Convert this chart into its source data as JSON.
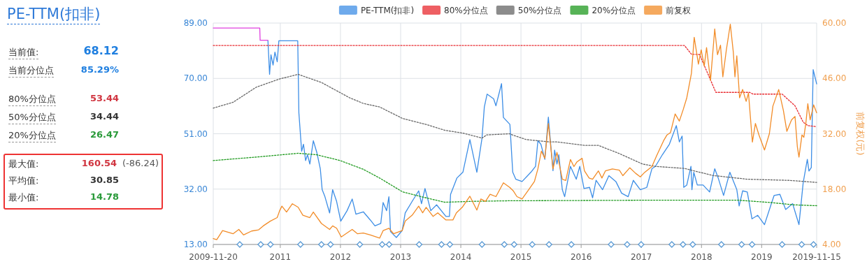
{
  "chart_data": [
    {
      "type": "other",
      "title": "PE-TTM(扣非)",
      "annotations": [
        "当前值:",
        "68.12",
        "当前分位点",
        "85.29%",
        "80%分位点",
        "53.44",
        "50%分位点",
        "34.44",
        "20%分位点",
        "26.47",
        "最大值:",
        "160.54",
        "(-86.24)",
        "平均值:",
        "30.85",
        "最小值:",
        "14.78"
      ]
    },
    {
      "type": "line",
      "y2label": "前复权(元)",
      "legend": "top",
      "grid": true,
      "xlim": [
        2009.886,
        2019.914
      ],
      "xticks": [
        {
          "value": 2009.886,
          "label": "2009-11-20"
        },
        {
          "value": 2011,
          "label": "2011"
        },
        {
          "value": 2012,
          "label": "2012"
        },
        {
          "value": 2013,
          "label": "2013"
        },
        {
          "value": 2014,
          "label": "2014"
        },
        {
          "value": 2015,
          "label": "2015"
        },
        {
          "value": 2016,
          "label": "2016"
        },
        {
          "value": 2017,
          "label": "2017"
        },
        {
          "value": 2018,
          "label": "2018"
        },
        {
          "value": 2019,
          "label": "2019"
        },
        {
          "value": 2019.914,
          "label": "2019-11-15"
        }
      ],
      "ylim": [
        13,
        89
      ],
      "yticks": [
        {
          "value": 13,
          "label": "13.00"
        },
        {
          "value": 32,
          "label": "32.00"
        },
        {
          "value": 51,
          "label": "51.00"
        },
        {
          "value": 70,
          "label": "70.00"
        },
        {
          "value": 89,
          "label": "89.00"
        }
      ],
      "y2lim": [
        4,
        60
      ],
      "y2ticks": [
        {
          "value": 4,
          "label": "4.00"
        },
        {
          "value": 18,
          "label": "18.00"
        },
        {
          "value": 32,
          "label": "32.00"
        },
        {
          "value": 46,
          "label": "46.00"
        },
        {
          "value": 60,
          "label": "60.00"
        }
      ],
      "series": [
        {
          "name": "PE-TTM(扣非)",
          "color": "#3d8ee6",
          "line_style": "solid",
          "x": [
            2010.795,
            2010.822,
            2010.845,
            2010.88,
            2010.911,
            2010.949,
            2010.976,
            2011.29,
            2011.309,
            2011.355,
            2011.386,
            2011.421,
            2011.452,
            2011.491,
            2011.549,
            2011.607,
            2011.665,
            2011.696,
            2011.742,
            2011.82,
            2011.87,
            2011.936,
            2012.005,
            2012.11,
            2012.195,
            2012.257,
            2012.38,
            2012.496,
            2012.573,
            2012.67,
            2012.709,
            2012.767,
            2012.805,
            2012.832,
            2012.929,
            2013.026,
            2013.076,
            2013.192,
            2013.3,
            2013.347,
            2013.405,
            2013.501,
            2013.598,
            2013.753,
            2013.811,
            2013.83,
            2013.935,
            2014.035,
            2014.151,
            2014.267,
            2014.352,
            2014.391,
            2014.437,
            2014.546,
            2014.584,
            2014.677,
            2014.708,
            2014.816,
            2014.863,
            2014.914,
            2015.018,
            2015.165,
            2015.242,
            2015.281,
            2015.331,
            2015.397,
            2015.455,
            2015.532,
            2015.559,
            2015.598,
            2015.629,
            2015.687,
            2015.726,
            2015.822,
            2015.919,
            2015.977,
            2016.047,
            2016.14,
            2016.19,
            2016.248,
            2016.356,
            2016.461,
            2016.577,
            2016.673,
            2016.781,
            2016.867,
            2016.983,
            2017.091,
            2017.176,
            2017.234,
            2017.35,
            2017.466,
            2017.582,
            2017.632,
            2017.678,
            2017.705,
            2017.756,
            2017.825,
            2017.841,
            2017.872,
            2017.93,
            2018.026,
            2018.135,
            2018.22,
            2018.278,
            2018.367,
            2018.471,
            2018.587,
            2018.626,
            2018.684,
            2018.761,
            2018.839,
            2018.935,
            2019.047,
            2019.148,
            2019.206,
            2019.303,
            2019.399,
            2019.515,
            2019.573,
            2019.62,
            2019.69,
            2019.759,
            2019.786,
            2019.825,
            2019.856,
            2019.914
          ],
          "values": [
            82.9,
            71.4,
            78.1,
            74.6,
            79.0,
            75.7,
            82.9,
            82.9,
            58.2,
            45.0,
            47.4,
            41.8,
            43.8,
            40.6,
            48.6,
            44.6,
            39.0,
            31.8,
            29.4,
            23.8,
            31.8,
            27.8,
            21.0,
            24.6,
            28.6,
            23.4,
            24.2,
            21.4,
            19.4,
            20.2,
            27.4,
            24.6,
            29.4,
            17.4,
            15.4,
            17.8,
            23.8,
            27.8,
            31.4,
            27.0,
            32.2,
            24.6,
            26.6,
            22.6,
            22.6,
            30.2,
            35.8,
            37.8,
            49.0,
            37.8,
            49.4,
            60.2,
            64.6,
            63.0,
            60.6,
            68.2,
            56.6,
            54.2,
            37.8,
            35.4,
            34.6,
            37.8,
            39.8,
            48.6,
            47.4,
            42.2,
            56.7,
            38.3,
            45.4,
            40.6,
            43.8,
            31.8,
            29.4,
            39.8,
            35.4,
            39.8,
            32.2,
            32.6,
            29.0,
            35.0,
            31.8,
            36.6,
            34.6,
            30.6,
            29.4,
            35.0,
            31.8,
            32.6,
            39.0,
            39.8,
            43.8,
            47.4,
            53.8,
            48.2,
            50.2,
            32.6,
            33.4,
            39.8,
            31.8,
            37.8,
            33.4,
            33.4,
            31.0,
            39.0,
            35.8,
            29.8,
            37.8,
            31.8,
            26.2,
            31.4,
            31.0,
            21.8,
            23.0,
            19.8,
            26.2,
            29.8,
            30.2,
            25.0,
            27.0,
            23.0,
            19.8,
            34.2,
            42.2,
            38.2,
            39.4,
            73.0,
            68.1
          ]
        },
        {
          "color": "#e040e0",
          "line_style": "solid",
          "x": [
            2009.886,
            2010.659,
            2010.665,
            2010.795
          ],
          "values": [
            87.3,
            87.3,
            83.1,
            83.1
          ]
        },
        {
          "name": "80%分位点",
          "color": "#e8292f",
          "line_style": "dotted",
          "x": [
            2009.886,
            2017.717,
            2017.833,
            2017.968,
            2018.239,
            2018.8,
            2018.858,
            2019.341,
            2019.554,
            2019.69,
            2019.767,
            2019.914
          ],
          "values": [
            81.3,
            81.3,
            78.3,
            78.2,
            65.2,
            65.2,
            64.6,
            64.6,
            60.6,
            55.0,
            53.8,
            53.4
          ]
        },
        {
          "name": "50%分位点",
          "color": "#666666",
          "line_style": "dotted",
          "x": [
            2009.886,
            2010.215,
            2010.602,
            2010.988,
            2011.297,
            2011.684,
            2012.148,
            2012.38,
            2012.651,
            2013.037,
            2013.424,
            2013.733,
            2014.043,
            2014.352,
            2014.43,
            2014.816,
            2014.856,
            2015.088,
            2015.475,
            2015.59,
            2016.055,
            2016.287,
            2016.634,
            2017.021,
            2017.234,
            2017.717,
            2018.181,
            2018.761,
            2019.457,
            2019.914
          ],
          "values": [
            59.8,
            61.8,
            67.0,
            69.8,
            71.4,
            68.6,
            63.4,
            61.4,
            60.2,
            56.2,
            54.2,
            52.2,
            51.2,
            49.5,
            50.6,
            51.0,
            50.6,
            49.0,
            48.2,
            48.2,
            47.0,
            47.0,
            44.2,
            40.6,
            39.8,
            39.1,
            36.7,
            35.4,
            35.0,
            34.3
          ]
        },
        {
          "name": "20%分位点",
          "color": "#1f9a1f",
          "line_style": "dotted",
          "x": [
            2009.886,
            2010.602,
            2011.297,
            2011.607,
            2011.994,
            2012.38,
            2012.651,
            2013.037,
            2013.424,
            2013.733,
            2014.197,
            2014.816,
            2017.253,
            2018.606,
            2019.148,
            2019.535,
            2019.914
          ],
          "values": [
            41.8,
            43.0,
            44.3,
            43.8,
            41.8,
            38.8,
            35.8,
            31.0,
            29.0,
            27.5,
            27.8,
            28.0,
            28.2,
            28.2,
            27.4,
            26.6,
            26.3
          ]
        },
        {
          "name": "前复权",
          "color": "#f28c28",
          "axis": "y2",
          "line_style": "solid",
          "x": [
            2009.886,
            2009.944,
            2010.041,
            2010.215,
            2010.311,
            2010.389,
            2010.524,
            2010.64,
            2010.717,
            2010.834,
            2010.949,
            2010.988,
            2011.027,
            2011.104,
            2011.201,
            2011.297,
            2011.375,
            2011.491,
            2011.549,
            2011.684,
            2011.82,
            2011.87,
            2011.936,
            2012.013,
            2012.11,
            2012.195,
            2012.284,
            2012.38,
            2012.496,
            2012.651,
            2012.709,
            2012.805,
            2012.883,
            2013.026,
            2013.076,
            2013.192,
            2013.3,
            2013.366,
            2013.424,
            2013.54,
            2013.617,
            2013.753,
            2013.869,
            2013.927,
            2014.024,
            2014.151,
            2014.267,
            2014.333,
            2014.41,
            2014.487,
            2014.584,
            2014.708,
            2014.816,
            2014.875,
            2014.933,
            2015.018,
            2015.126,
            2015.223,
            2015.281,
            2015.339,
            2015.397,
            2015.455,
            2015.532,
            2015.598,
            2015.687,
            2015.745,
            2015.822,
            2015.88,
            2015.931,
            2016.016,
            2016.055,
            2016.132,
            2016.19,
            2016.287,
            2016.345,
            2016.403,
            2016.519,
            2016.635,
            2016.693,
            2016.809,
            2016.905,
            2016.983,
            2017.06,
            2017.176,
            2017.253,
            2017.369,
            2017.427,
            2017.485,
            2017.562,
            2017.632,
            2017.698,
            2017.756,
            2017.833,
            2017.879,
            2017.949,
            2017.995,
            2018.046,
            2018.084,
            2018.15,
            2018.22,
            2018.266,
            2018.316,
            2018.355,
            2018.413,
            2018.479,
            2018.529,
            2018.556,
            2018.587,
            2018.633,
            2018.684,
            2018.742,
            2018.781,
            2018.846,
            2018.896,
            2018.955,
            2019.047,
            2019.128,
            2019.187,
            2019.283,
            2019.361,
            2019.419,
            2019.496,
            2019.554,
            2019.593,
            2019.62,
            2019.67,
            2019.701,
            2019.736,
            2019.767,
            2019.806,
            2019.864,
            2019.914
          ],
          "values": [
            5.5,
            5.2,
            7.5,
            6.7,
            7.8,
            6.4,
            7.4,
            7.7,
            8.7,
            9.9,
            10.8,
            12.5,
            13.7,
            12.2,
            14.3,
            13.4,
            11.4,
            10.8,
            12.2,
            9.3,
            7.8,
            8.7,
            8.1,
            5.9,
            6.9,
            7.8,
            6.7,
            6.9,
            6.4,
            5.6,
            7.5,
            8.1,
            6.7,
            7.5,
            9.9,
            11.4,
            13.7,
            12.0,
            13.4,
            11.1,
            12.0,
            10.2,
            10.2,
            12.0,
            13.4,
            16.2,
            12.7,
            15.5,
            14.9,
            16.7,
            16.1,
            19.6,
            18.4,
            17.5,
            16.1,
            15.5,
            17.8,
            19.9,
            23.1,
            27.6,
            25.8,
            34.6,
            23.1,
            27.3,
            20.5,
            20.2,
            25.5,
            23.7,
            24.9,
            25.8,
            22.6,
            20.8,
            20.5,
            22.6,
            20.8,
            22.6,
            23.1,
            22.8,
            21.4,
            23.4,
            22.0,
            21.1,
            22.3,
            23.7,
            26.4,
            30.2,
            31.7,
            32.3,
            37.0,
            35.2,
            38.2,
            41.1,
            47.3,
            56.4,
            49.6,
            53.2,
            49.1,
            53.8,
            45.5,
            58.5,
            52.0,
            54.4,
            46.4,
            53.2,
            59.7,
            52.6,
            46.4,
            51.7,
            41.1,
            43.2,
            40.2,
            42.3,
            29.9,
            34.6,
            31.7,
            27.9,
            32.0,
            39.0,
            43.2,
            37.9,
            32.6,
            35.5,
            36.4,
            28.7,
            26.1,
            31.7,
            31.1,
            34.9,
            39.6,
            35.5,
            39.3,
            37.3
          ]
        },
        {
          "type": "scatter",
          "marker": "diamond",
          "color": "#5b9bd5",
          "x": [
            2010.327,
            2010.675,
            2010.837,
            2011.336,
            2011.684,
            2011.835,
            2012.322,
            2012.693,
            2012.809,
            2013.308,
            2013.679,
            2013.818,
            2014.352,
            2014.723,
            2014.886,
            2015.187,
            2015.466,
            2015.837,
            2016.498,
            2016.765,
            2016.997,
            2017.507,
            2017.693,
            2017.855,
            2018.331,
            2018.667,
            2018.841,
            2019.34,
            2019.665,
            2019.862
          ],
          "values": [
            13,
            13,
            13,
            13,
            13,
            13,
            13,
            13,
            13,
            13,
            13,
            13,
            13,
            13,
            13,
            13,
            13,
            13,
            13,
            13,
            13,
            13,
            13,
            13,
            13,
            13,
            13,
            13,
            13,
            13
          ]
        }
      ]
    }
  ]
}
